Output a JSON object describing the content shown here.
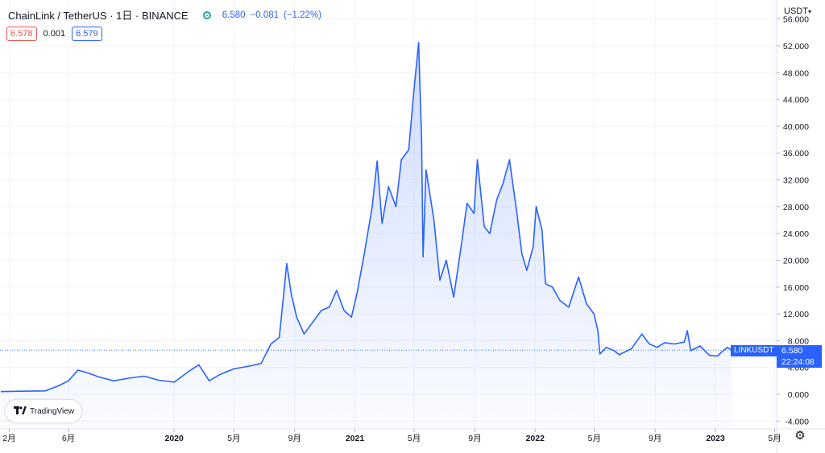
{
  "header": {
    "symbol": "ChainLink / TetherUS · 1日 · BINANCE",
    "price": "6.580",
    "change": "−0.081",
    "change_pct": "(−1.22%)"
  },
  "quote": {
    "bid": "6.578",
    "spread": "0.001",
    "ask": "6.579"
  },
  "currency": "USDT",
  "price_tag": {
    "symbol": "LINKUSDT",
    "price": "6.580",
    "countdown": "22:24:08"
  },
  "logo_text": "TradingView",
  "colors": {
    "line": "#2962ff",
    "tag": "#2962ff",
    "bid": "#ef5350",
    "grid": "#f0f3fa"
  },
  "icons": {
    "settings": "gear-icon",
    "status": "market-open-dot-icon",
    "currency": "chevron-down-icon"
  },
  "chart_data": {
    "type": "area",
    "y_ticks": [
      "56.000",
      "52.000",
      "48.000",
      "44.000",
      "40.000",
      "36.000",
      "32.000",
      "28.000",
      "24.000",
      "20.000",
      "16.000",
      "12.000",
      "8.000",
      "4.000",
      "0.000",
      "-4.000"
    ],
    "ylim": [
      -4,
      56
    ],
    "x_ticks": [
      {
        "label": "2月",
        "date": "2019-02"
      },
      {
        "label": "6月",
        "date": "2019-06"
      },
      {
        "label": "2020",
        "date": "2020-01"
      },
      {
        "label": "5月",
        "date": "2020-05"
      },
      {
        "label": "9月",
        "date": "2020-09"
      },
      {
        "label": "2021",
        "date": "2021-01"
      },
      {
        "label": "5月",
        "date": "2021-05"
      },
      {
        "label": "9月",
        "date": "2021-09"
      },
      {
        "label": "2022",
        "date": "2022-01"
      },
      {
        "label": "5月",
        "date": "2022-05"
      },
      {
        "label": "9月",
        "date": "2022-09"
      },
      {
        "label": "2023",
        "date": "2023-01"
      },
      {
        "label": "5月",
        "date": "2023-05"
      }
    ],
    "last_price": 6.58,
    "series": [
      {
        "name": "LINKUSDT",
        "points": [
          [
            "2019-01-15",
            0.4
          ],
          [
            "2019-02-15",
            0.45
          ],
          [
            "2019-03-15",
            0.47
          ],
          [
            "2019-04-15",
            0.5
          ],
          [
            "2019-05-10",
            1.2
          ],
          [
            "2019-06-01",
            2.0
          ],
          [
            "2019-06-20",
            3.6
          ],
          [
            "2019-07-10",
            3.2
          ],
          [
            "2019-08-01",
            2.6
          ],
          [
            "2019-09-01",
            2.0
          ],
          [
            "2019-10-01",
            2.4
          ],
          [
            "2019-11-01",
            2.7
          ],
          [
            "2019-12-01",
            2.1
          ],
          [
            "2020-01-01",
            1.8
          ],
          [
            "2020-02-01",
            3.5
          ],
          [
            "2020-02-20",
            4.4
          ],
          [
            "2020-03-12",
            2.0
          ],
          [
            "2020-04-01",
            2.9
          ],
          [
            "2020-05-01",
            3.8
          ],
          [
            "2020-06-01",
            4.2
          ],
          [
            "2020-06-25",
            4.6
          ],
          [
            "2020-07-15",
            7.5
          ],
          [
            "2020-08-01",
            8.5
          ],
          [
            "2020-08-16",
            19.5
          ],
          [
            "2020-08-25",
            15.0
          ],
          [
            "2020-09-05",
            11.5
          ],
          [
            "2020-09-20",
            9.0
          ],
          [
            "2020-10-05",
            10.5
          ],
          [
            "2020-10-25",
            12.5
          ],
          [
            "2020-11-10",
            13.0
          ],
          [
            "2020-11-25",
            15.5
          ],
          [
            "2020-12-10",
            12.5
          ],
          [
            "2020-12-25",
            11.5
          ],
          [
            "2021-01-05",
            15.0
          ],
          [
            "2021-01-20",
            21.0
          ],
          [
            "2021-02-05",
            28.0
          ],
          [
            "2021-02-15",
            34.8
          ],
          [
            "2021-02-25",
            25.5
          ],
          [
            "2021-03-10",
            31.0
          ],
          [
            "2021-03-25",
            28.0
          ],
          [
            "2021-04-05",
            35.0
          ],
          [
            "2021-04-20",
            36.5
          ],
          [
            "2021-04-30",
            45.0
          ],
          [
            "2021-05-10",
            52.5
          ],
          [
            "2021-05-16",
            38.0
          ],
          [
            "2021-05-19",
            20.5
          ],
          [
            "2021-05-25",
            33.5
          ],
          [
            "2021-06-10",
            26.0
          ],
          [
            "2021-06-22",
            17.0
          ],
          [
            "2021-07-05",
            20.0
          ],
          [
            "2021-07-20",
            14.5
          ],
          [
            "2021-08-05",
            22.5
          ],
          [
            "2021-08-16",
            28.5
          ],
          [
            "2021-08-30",
            27.0
          ],
          [
            "2021-09-06",
            35.0
          ],
          [
            "2021-09-20",
            25.0
          ],
          [
            "2021-10-01",
            24.0
          ],
          [
            "2021-10-15",
            29.0
          ],
          [
            "2021-10-28",
            31.5
          ],
          [
            "2021-11-10",
            35.0
          ],
          [
            "2021-11-25",
            27.0
          ],
          [
            "2021-12-05",
            21.0
          ],
          [
            "2021-12-15",
            18.5
          ],
          [
            "2021-12-28",
            22.0
          ],
          [
            "2022-01-03",
            28.0
          ],
          [
            "2022-01-15",
            24.5
          ],
          [
            "2022-01-22",
            16.5
          ],
          [
            "2022-02-05",
            16.0
          ],
          [
            "2022-02-20",
            14.0
          ],
          [
            "2022-03-10",
            13.0
          ],
          [
            "2022-03-30",
            17.5
          ],
          [
            "2022-04-15",
            13.5
          ],
          [
            "2022-04-30",
            12.0
          ],
          [
            "2022-05-08",
            9.5
          ],
          [
            "2022-05-12",
            6.0
          ],
          [
            "2022-05-25",
            7.0
          ],
          [
            "2022-06-10",
            6.5
          ],
          [
            "2022-06-20",
            5.9
          ],
          [
            "2022-07-15",
            6.8
          ],
          [
            "2022-08-05",
            9.0
          ],
          [
            "2022-08-20",
            7.5
          ],
          [
            "2022-09-05",
            7.0
          ],
          [
            "2022-09-20",
            7.7
          ],
          [
            "2022-10-10",
            7.5
          ],
          [
            "2022-10-30",
            7.8
          ],
          [
            "2022-11-05",
            9.5
          ],
          [
            "2022-11-12",
            6.5
          ],
          [
            "2022-12-01",
            7.2
          ],
          [
            "2022-12-20",
            5.8
          ],
          [
            "2023-01-05",
            5.7
          ],
          [
            "2023-01-15",
            6.4
          ],
          [
            "2023-01-25",
            7.0
          ],
          [
            "2023-02-03",
            6.58
          ]
        ]
      }
    ]
  }
}
